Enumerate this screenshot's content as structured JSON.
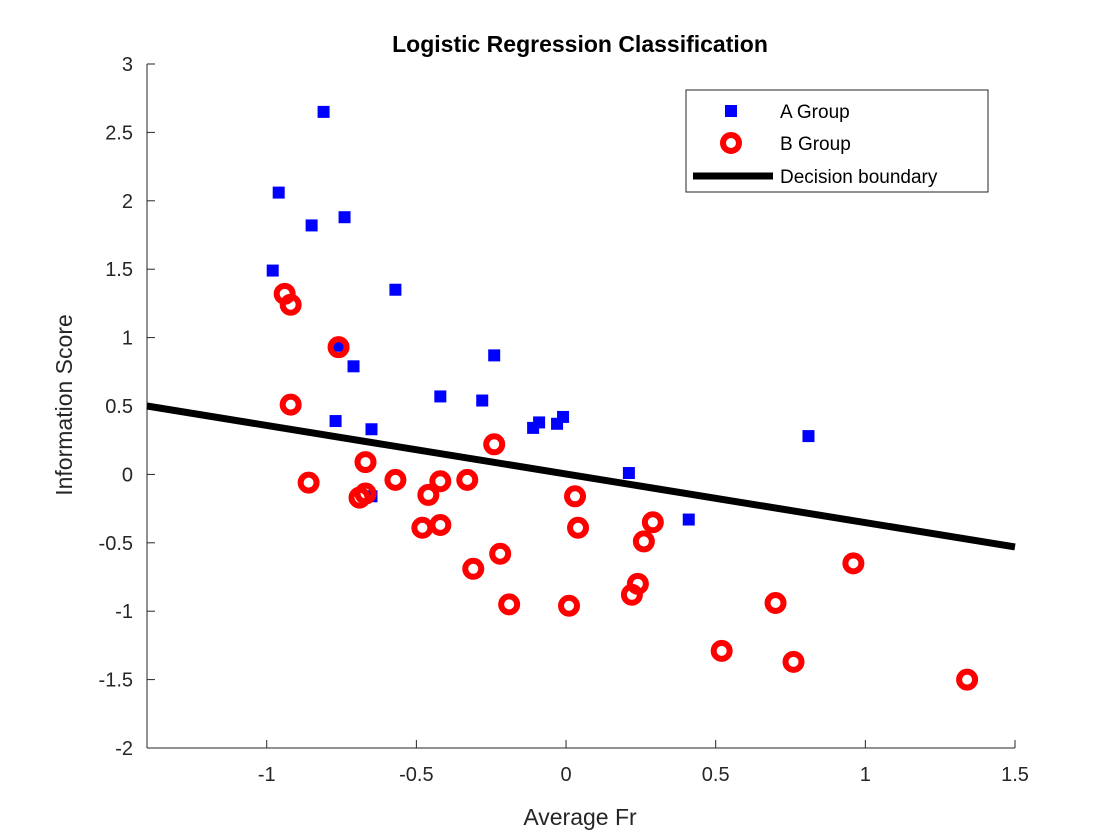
{
  "chart_data": {
    "type": "scatter",
    "title": "Logistic Regression Classification",
    "xlabel": "Average Fr",
    "ylabel": "Information Score",
    "xlim": [
      -1.4,
      1.5
    ],
    "ylim": [
      -2,
      3
    ],
    "xticks": [
      -1,
      -0.5,
      0,
      0.5,
      1,
      1.5
    ],
    "xtick_labels": [
      "-1",
      "-0.5",
      "0",
      "0.5",
      "1",
      "1.5"
    ],
    "yticks": [
      -2,
      -1.5,
      -1,
      -0.5,
      0,
      0.5,
      1,
      1.5,
      2,
      2.5,
      3
    ],
    "ytick_labels": [
      "-2",
      "-1.5",
      "-1",
      "-0.5",
      "0",
      "0.5",
      "1",
      "1.5",
      "2",
      "2.5",
      "3"
    ],
    "grid": false,
    "legend_position": "top-right",
    "series": [
      {
        "name": "A Group",
        "marker": "square",
        "color": "#0000ff",
        "points": [
          [
            -0.81,
            2.65
          ],
          [
            -0.96,
            2.06
          ],
          [
            -0.85,
            1.82
          ],
          [
            -0.74,
            1.88
          ],
          [
            -0.98,
            1.49
          ],
          [
            -0.57,
            1.35
          ],
          [
            -0.76,
            0.94
          ],
          [
            -0.71,
            0.79
          ],
          [
            -0.24,
            0.87
          ],
          [
            -0.42,
            0.57
          ],
          [
            -0.28,
            0.54
          ],
          [
            -0.77,
            0.39
          ],
          [
            -0.65,
            0.33
          ],
          [
            -0.11,
            0.34
          ],
          [
            -0.09,
            0.38
          ],
          [
            -0.03,
            0.37
          ],
          [
            -0.01,
            0.42
          ],
          [
            0.21,
            0.01
          ],
          [
            0.81,
            0.28
          ],
          [
            0.41,
            -0.33
          ],
          [
            -0.65,
            -0.16
          ]
        ]
      },
      {
        "name": "B Group",
        "marker": "circle",
        "color": "#ff0000",
        "points": [
          [
            -0.94,
            1.32
          ],
          [
            -0.92,
            1.24
          ],
          [
            -0.76,
            0.93
          ],
          [
            -0.92,
            0.51
          ],
          [
            -0.24,
            0.22
          ],
          [
            -0.67,
            0.09
          ],
          [
            -0.86,
            -0.06
          ],
          [
            -0.57,
            -0.04
          ],
          [
            -0.42,
            -0.05
          ],
          [
            -0.33,
            -0.04
          ],
          [
            -0.46,
            -0.15
          ],
          [
            -0.69,
            -0.17
          ],
          [
            -0.67,
            -0.14
          ],
          [
            -0.48,
            -0.39
          ],
          [
            -0.42,
            -0.37
          ],
          [
            0.03,
            -0.16
          ],
          [
            0.04,
            -0.39
          ],
          [
            0.29,
            -0.35
          ],
          [
            0.26,
            -0.49
          ],
          [
            -0.31,
            -0.69
          ],
          [
            -0.22,
            -0.58
          ],
          [
            -0.19,
            -0.95
          ],
          [
            0.01,
            -0.96
          ],
          [
            0.24,
            -0.8
          ],
          [
            0.22,
            -0.88
          ],
          [
            0.52,
            -1.29
          ],
          [
            0.7,
            -0.94
          ],
          [
            0.76,
            -1.37
          ],
          [
            0.96,
            -0.65
          ],
          [
            1.34,
            -1.5
          ]
        ]
      },
      {
        "name": "Decision boundary",
        "type": "line",
        "color": "#000000",
        "points": [
          [
            -1.4,
            0.5
          ],
          [
            1.5,
            -0.53
          ]
        ]
      }
    ]
  }
}
